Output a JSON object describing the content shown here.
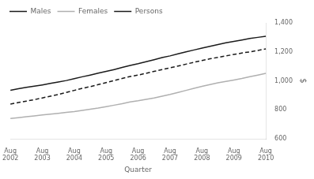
{
  "chart_data": {
    "type": "line",
    "xlabel": "Quarter",
    "ylabel": "$",
    "categories": [
      "Aug\n2002",
      null,
      null,
      null,
      "Aug\n2003",
      null,
      null,
      null,
      "Aug\n2004",
      null,
      null,
      null,
      "Aug\n2005",
      null,
      null,
      null,
      "Aug\n2006",
      null,
      null,
      null,
      "Aug\n2007",
      null,
      null,
      null,
      "Aug\n2008",
      null,
      null,
      null,
      "Aug\n2009",
      null,
      null,
      null,
      "Aug\n2010"
    ],
    "series": [
      {
        "name": "Males",
        "color": "#1a1a1a",
        "line_style": "solid",
        "values": [
          935,
          945,
          955,
          963,
          972,
          982,
          992,
          1002,
          1015,
          1028,
          1040,
          1053,
          1065,
          1078,
          1092,
          1106,
          1118,
          1132,
          1146,
          1160,
          1172,
          1186,
          1200,
          1213,
          1226,
          1238,
          1250,
          1262,
          1272,
          1282,
          1292,
          1300,
          1308
        ]
      },
      {
        "name": "Females",
        "color": "#b0b0b0",
        "line_style": "solid",
        "values": [
          740,
          746,
          752,
          758,
          764,
          770,
          776,
          782,
          788,
          796,
          804,
          812,
          822,
          832,
          842,
          854,
          862,
          872,
          882,
          894,
          906,
          920,
          934,
          948,
          962,
          974,
          986,
          996,
          1006,
          1016,
          1028,
          1040,
          1052
        ]
      },
      {
        "name": "Persons",
        "color": "#1a1a1a",
        "line_style": "dashed",
        "values": [
          840,
          850,
          860,
          870,
          882,
          894,
          906,
          920,
          934,
          948,
          960,
          974,
          988,
          1002,
          1016,
          1030,
          1040,
          1052,
          1065,
          1078,
          1090,
          1102,
          1115,
          1128,
          1140,
          1152,
          1162,
          1172,
          1182,
          1192,
          1200,
          1210,
          1220
        ]
      }
    ],
    "ylim": [
      600,
      1400
    ],
    "yticks": [
      600,
      800,
      1000,
      1200,
      1400
    ],
    "grid": false,
    "legend": "upper left"
  }
}
